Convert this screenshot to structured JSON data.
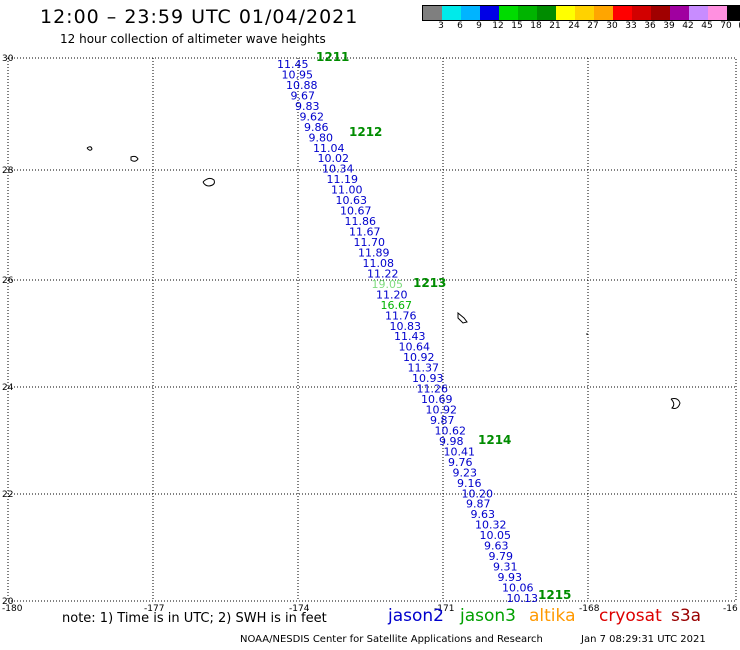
{
  "header": {
    "title": "12:00 – 23:59 UTC 01/04/2021",
    "subtitle": "12 hour collection of altimeter wave heights"
  },
  "legend": {
    "colors": [
      "#7f7f7f",
      "#00eaea",
      "#00b4ff",
      "#0000e6",
      "#00dc00",
      "#00b400",
      "#008c00",
      "#ffff00",
      "#ffd200",
      "#ffa500",
      "#ff0000",
      "#d20000",
      "#a00000",
      "#a000a0",
      "#c88cff",
      "#ff90e0",
      "#000000"
    ],
    "labels": [
      "3",
      "6",
      "9",
      "12",
      "15",
      "18",
      "21",
      "24",
      "27",
      "30",
      "33",
      "36",
      "39",
      "42",
      "45",
      "70",
      "(ft)"
    ]
  },
  "map": {
    "lat_labels": [
      "30",
      "28",
      "26",
      "24",
      "22",
      "20"
    ],
    "lon_labels": [
      "-180",
      "-177",
      "-174",
      "-171",
      "-168",
      "-16"
    ]
  },
  "passes": [
    {
      "id": "1211",
      "color": "#008c00"
    },
    {
      "id": "1212",
      "color": "#008c00"
    },
    {
      "id": "1213",
      "color": "#008c00"
    },
    {
      "id": "1214",
      "color": "#008c00"
    },
    {
      "id": "1215",
      "color": "#008c00"
    }
  ],
  "readings": [
    {
      "v": "11.45",
      "c": "#0000cc"
    },
    {
      "v": "10.95",
      "c": "#0000cc"
    },
    {
      "v": "10.88",
      "c": "#0000cc"
    },
    {
      "v": "9.67",
      "c": "#0000cc"
    },
    {
      "v": "9.83",
      "c": "#0000cc"
    },
    {
      "v": "9.62",
      "c": "#0000cc"
    },
    {
      "v": "9.86",
      "c": "#0000cc"
    },
    {
      "v": "9.80",
      "c": "#0000cc"
    },
    {
      "v": "11.04",
      "c": "#0000cc"
    },
    {
      "v": "10.02",
      "c": "#0000cc"
    },
    {
      "v": "10.34",
      "c": "#0000cc"
    },
    {
      "v": "11.19",
      "c": "#0000cc"
    },
    {
      "v": "11.00",
      "c": "#0000cc"
    },
    {
      "v": "10.63",
      "c": "#0000cc"
    },
    {
      "v": "10.67",
      "c": "#0000cc"
    },
    {
      "v": "11.86",
      "c": "#0000cc"
    },
    {
      "v": "11.67",
      "c": "#0000cc"
    },
    {
      "v": "11.70",
      "c": "#0000cc"
    },
    {
      "v": "11.89",
      "c": "#0000cc"
    },
    {
      "v": "11.08",
      "c": "#0000cc"
    },
    {
      "v": "11.22",
      "c": "#0000cc"
    },
    {
      "v": "19.05",
      "c": "#7fdc7f"
    },
    {
      "v": "11.20",
      "c": "#0000cc"
    },
    {
      "v": "16.67",
      "c": "#00b400"
    },
    {
      "v": "11.76",
      "c": "#0000cc"
    },
    {
      "v": "10.83",
      "c": "#0000cc"
    },
    {
      "v": "11.43",
      "c": "#0000cc"
    },
    {
      "v": "10.64",
      "c": "#0000cc"
    },
    {
      "v": "10.92",
      "c": "#0000cc"
    },
    {
      "v": "11.37",
      "c": "#0000cc"
    },
    {
      "v": "10.93",
      "c": "#0000cc"
    },
    {
      "v": "11.26",
      "c": "#0000cc"
    },
    {
      "v": "10.69",
      "c": "#0000cc"
    },
    {
      "v": "10.92",
      "c": "#0000cc"
    },
    {
      "v": "9.87",
      "c": "#0000cc"
    },
    {
      "v": "10.62",
      "c": "#0000cc"
    },
    {
      "v": "9.98",
      "c": "#0000cc"
    },
    {
      "v": "10.41",
      "c": "#0000cc"
    },
    {
      "v": "9.76",
      "c": "#0000cc"
    },
    {
      "v": "9.23",
      "c": "#0000cc"
    },
    {
      "v": "9.16",
      "c": "#0000cc"
    },
    {
      "v": "10.20",
      "c": "#0000cc"
    },
    {
      "v": "9.87",
      "c": "#0000cc"
    },
    {
      "v": "9.63",
      "c": "#0000cc"
    },
    {
      "v": "10.32",
      "c": "#0000cc"
    },
    {
      "v": "10.05",
      "c": "#0000cc"
    },
    {
      "v": "9.63",
      "c": "#0000cc"
    },
    {
      "v": "9.79",
      "c": "#0000cc"
    },
    {
      "v": "9.31",
      "c": "#0000cc"
    },
    {
      "v": "9.93",
      "c": "#0000cc"
    },
    {
      "v": "10.06",
      "c": "#0000cc"
    },
    {
      "v": "10.13",
      "c": "#0000cc"
    }
  ],
  "footer": {
    "note": "note: 1) Time is in UTC; 2) SWH is in feet",
    "satellites": [
      {
        "name": "jason2",
        "color": "#0000cc"
      },
      {
        "name": "jason3",
        "color": "#00a000"
      },
      {
        "name": "altika",
        "color": "#ff9900"
      },
      {
        "name": "cryosat",
        "color": "#dd0000"
      },
      {
        "name": "s3a",
        "color": "#990000"
      }
    ],
    "credit": "NOAA/NESDIS Center for Satellite Applications and Research",
    "timestamp": "Jan  7 08:29:31 UTC 2021"
  }
}
